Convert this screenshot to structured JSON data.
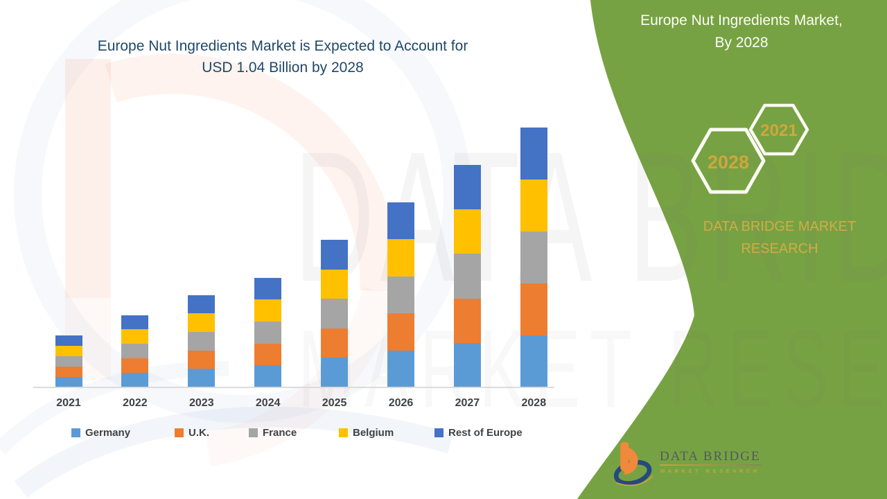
{
  "page": {
    "green": "#77A243",
    "gold": "#CFA73C",
    "title_blue": "#1F4868"
  },
  "title": {
    "line1": "Europe Nut Ingredients Market is Expected to Account for",
    "line2": "USD 1.04 Billion by 2028"
  },
  "right_panel": {
    "title_line1": "Europe Nut Ingredients Market,",
    "title_line2": "By 2028",
    "hexagons": [
      {
        "label": "2028"
      },
      {
        "label": "2021"
      }
    ],
    "brand_line1": "DATA BRIDGE MARKET",
    "brand_line2": "RESEARCH"
  },
  "watermark": {
    "line1": "DATA BRIDGE",
    "line2": "MARKET RESEARCH"
  },
  "footer_logo": {
    "name": "DATA BRIDGE",
    "subtitle": "MARKET RESEARCH"
  },
  "chart_data": {
    "type": "bar",
    "stacked": true,
    "title": "Europe Nut Ingredients Market is Expected to Account for USD 1.04 Billion by 2028",
    "unit": "USD Billion",
    "categories": [
      "2021",
      "2022",
      "2023",
      "2024",
      "2025",
      "2026",
      "2027",
      "2028"
    ],
    "series": [
      {
        "name": "Germany",
        "color": "#5B9BD5",
        "values": [
          0.042,
          0.058,
          0.074,
          0.088,
          0.118,
          0.148,
          0.178,
          0.208
        ]
      },
      {
        "name": "U.K.",
        "color": "#ED7D31",
        "values": [
          0.042,
          0.058,
          0.074,
          0.088,
          0.118,
          0.148,
          0.178,
          0.208
        ]
      },
      {
        "name": "France",
        "color": "#A5A5A5",
        "values": [
          0.042,
          0.058,
          0.074,
          0.088,
          0.118,
          0.148,
          0.178,
          0.208
        ]
      },
      {
        "name": "Belgium",
        "color": "#FFC000",
        "values": [
          0.042,
          0.058,
          0.074,
          0.088,
          0.118,
          0.148,
          0.178,
          0.208
        ]
      },
      {
        "name": "Rest of Europe",
        "color": "#4472C4",
        "values": [
          0.042,
          0.058,
          0.074,
          0.088,
          0.118,
          0.148,
          0.178,
          0.208
        ]
      }
    ],
    "totals": [
      0.21,
      0.29,
      0.37,
      0.44,
      0.59,
      0.74,
      0.89,
      1.04
    ],
    "xlabel": "",
    "ylabel": "",
    "y_axis_visible": false,
    "gridlines": false,
    "legend_position": "bottom"
  }
}
